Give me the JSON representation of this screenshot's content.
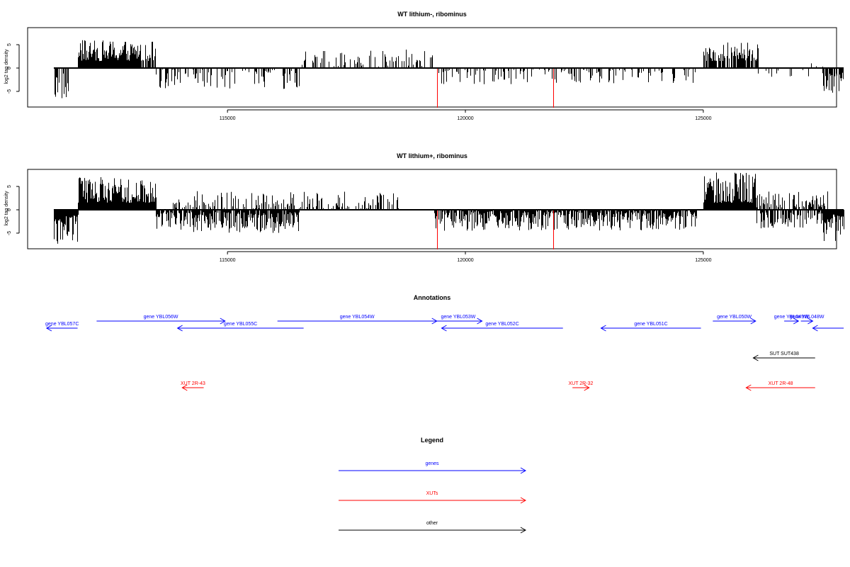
{
  "colors": {
    "genes": "#0000ff",
    "xuts": "#ff0000",
    "other": "#000000",
    "signal": "#000000",
    "highlight": "#ff0000"
  },
  "chart_data": [
    {
      "type": "bar",
      "title": "WT lithium-, ribominus",
      "ylabel": "log2 tag density",
      "xlim": [
        110800,
        127800
      ],
      "ylim": [
        -8.5,
        8.5
      ],
      "yticks": [
        -5,
        0,
        5
      ],
      "xticks": [
        115000,
        120000,
        125000
      ],
      "grid": false,
      "highlights": [
        {
          "x": 119400,
          "value": -8.5
        },
        {
          "x": 121850,
          "value": -8.5
        }
      ],
      "regions": [
        {
          "from": 111350,
          "to": 111650,
          "sign": -1,
          "min": 1,
          "max": 8,
          "density": 0.5
        },
        {
          "from": 111650,
          "to": 111850,
          "sign": 0,
          "min": 0,
          "max": 0,
          "density": 0
        },
        {
          "from": 111850,
          "to": 113050,
          "sign": 1,
          "min": 1.5,
          "max": 6,
          "density": 1
        },
        {
          "from": 113050,
          "to": 113500,
          "sign": 1,
          "min": 1.5,
          "max": 6,
          "density": 0.8
        },
        {
          "from": 113500,
          "to": 116500,
          "sign": -1,
          "min": 0.3,
          "max": 4.5,
          "density": 0.35
        },
        {
          "from": 116500,
          "to": 119350,
          "sign": 1,
          "min": 0.3,
          "max": 4,
          "density": 0.3
        },
        {
          "from": 119350,
          "to": 124850,
          "sign": -1,
          "min": 0.3,
          "max": 3.5,
          "density": 0.3
        },
        {
          "from": 125000,
          "to": 126150,
          "sign": 1,
          "min": 1.5,
          "max": 5.5,
          "density": 0.7
        },
        {
          "from": 126150,
          "to": 127200,
          "sign": -1,
          "min": 0.3,
          "max": 2,
          "density": 0.15
        },
        {
          "from": 127200,
          "to": 127500,
          "sign": 1,
          "min": 0.3,
          "max": 1.5,
          "density": 0.1
        },
        {
          "from": 127500,
          "to": 127950,
          "sign": -1,
          "min": 1,
          "max": 5.5,
          "density": 0.7
        }
      ]
    },
    {
      "type": "bar",
      "title": "WT lithium+, ribominus",
      "ylabel": "log2 tag density",
      "xlim": [
        110800,
        127800
      ],
      "ylim": [
        -8.5,
        8.5
      ],
      "yticks": [
        -5,
        0,
        5
      ],
      "xticks": [
        115000,
        120000,
        125000
      ],
      "grid": false,
      "highlights": [
        {
          "x": 119400,
          "value": -8.5
        },
        {
          "x": 121850,
          "value": -8.5
        }
      ],
      "regions": [
        {
          "from": 111350,
          "to": 111850,
          "sign": -1,
          "min": 1,
          "max": 8,
          "density": 1
        },
        {
          "from": 111850,
          "to": 113050,
          "sign": 1,
          "min": 1.5,
          "max": 7,
          "density": 1
        },
        {
          "from": 113050,
          "to": 113500,
          "sign": 1,
          "min": 1.5,
          "max": 6.5,
          "density": 1
        },
        {
          "from": 113500,
          "to": 116500,
          "sign": -1,
          "min": 0.5,
          "max": 5,
          "density": 0.9
        },
        {
          "from": 113800,
          "to": 118600,
          "sign": 1,
          "min": 0.3,
          "max": 4,
          "density": 0.45
        },
        {
          "from": 119350,
          "to": 124850,
          "sign": -1,
          "min": 0.3,
          "max": 4.5,
          "density": 0.85
        },
        {
          "from": 125000,
          "to": 126100,
          "sign": 1,
          "min": 1.5,
          "max": 8,
          "density": 1
        },
        {
          "from": 126100,
          "to": 127600,
          "sign": 1,
          "min": 0.5,
          "max": 4,
          "density": 0.55
        },
        {
          "from": 126100,
          "to": 127500,
          "sign": -1,
          "min": 0.5,
          "max": 4,
          "density": 0.6
        },
        {
          "from": 127500,
          "to": 127950,
          "sign": -1,
          "min": 1,
          "max": 7,
          "density": 1
        }
      ]
    }
  ],
  "annotations": {
    "title": "Annotations",
    "items": [
      {
        "label": "gene YBL057C",
        "category": "genes",
        "row": 1,
        "from": 111850,
        "to": 111200
      },
      {
        "label": "gene YBL056W",
        "category": "genes",
        "row": 0,
        "from": 112250,
        "to": 114950
      },
      {
        "label": "gene YBL055C",
        "category": "genes",
        "row": 1,
        "from": 116600,
        "to": 113950
      },
      {
        "label": "gene YBL054W",
        "category": "genes",
        "row": 0,
        "from": 116050,
        "to": 119400
      },
      {
        "label": "gene YBL053W",
        "category": "genes",
        "row": 0,
        "from": 119350,
        "to": 120350
      },
      {
        "label": "gene YBL052C",
        "category": "genes",
        "row": 1,
        "from": 122050,
        "to": 119500
      },
      {
        "label": "gene YBL051C",
        "category": "genes",
        "row": 1,
        "from": 124950,
        "to": 122850
      },
      {
        "label": "gene YBL050W",
        "category": "genes",
        "row": 0,
        "from": 125200,
        "to": 126100
      },
      {
        "label": "gene YBL049W",
        "category": "genes",
        "row": 0,
        "from": 126700,
        "to": 127000
      },
      {
        "label": "gene YBL048W",
        "category": "genes",
        "row": 0,
        "from": 127050,
        "to": 127300
      },
      {
        "label": "",
        "category": "genes",
        "row": 1,
        "from": 127950,
        "to": 127300
      },
      {
        "label": "SUT SUT438",
        "category": "other",
        "row": 2,
        "from": 127350,
        "to": 126050
      },
      {
        "label": "XUT 2R-43",
        "category": "xuts",
        "row": 3,
        "from": 114500,
        "to": 114050
      },
      {
        "label": "XUT 2R-32",
        "category": "xuts",
        "row": 3,
        "from": 122250,
        "to": 122600
      },
      {
        "label": "XUT 2R-48",
        "category": "xuts",
        "row": 3,
        "from": 127350,
        "to": 125900
      }
    ]
  },
  "legend": {
    "title": "Legend",
    "items": [
      {
        "label": "genes",
        "category": "genes"
      },
      {
        "label": "XUTs",
        "category": "xuts"
      },
      {
        "label": "other",
        "category": "other"
      }
    ]
  }
}
